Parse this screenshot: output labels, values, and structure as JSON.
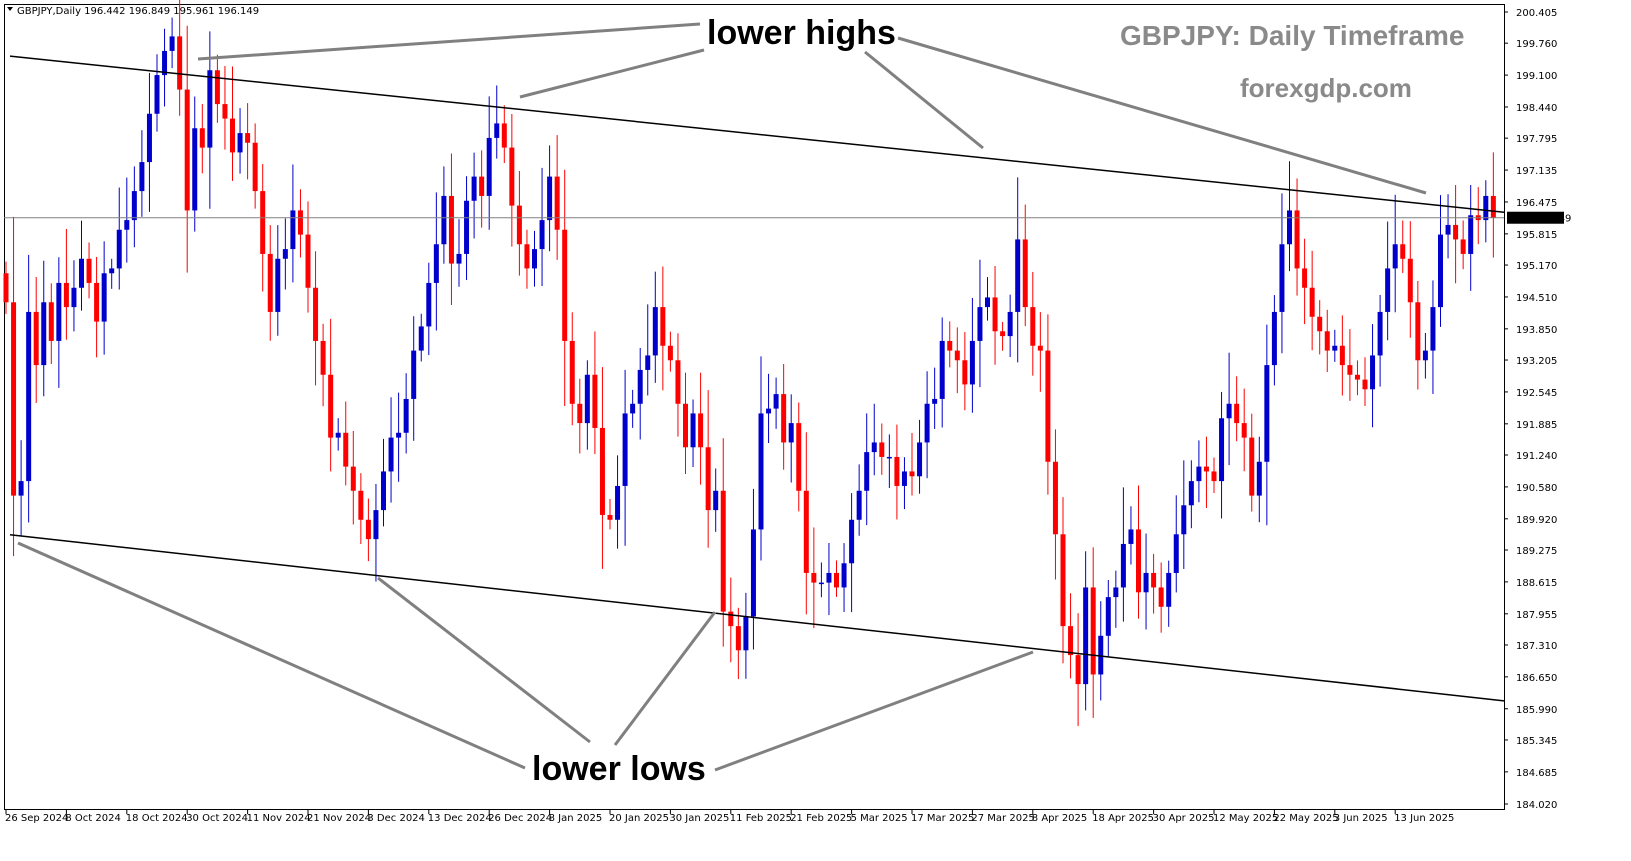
{
  "symbol_info": "GBPJPY,Daily  196.442 196.849 195.961 196.149",
  "watermark": {
    "title": "GBPJPY: Daily Timeframe",
    "site": "forexgdp.com"
  },
  "annotations": {
    "lower_highs": "lower highs",
    "lower_lows": "lower lows"
  },
  "colors": {
    "bull": "#0000cc",
    "bear": "#ff0000",
    "trendline": "#000000",
    "pointer": "#808080",
    "current_line": "#808080",
    "label_bg": "#000000"
  },
  "chart_data": {
    "type": "candlestick",
    "instrument": "GBPJPY",
    "timeframe": "Daily",
    "ylim": [
      184.02,
      200.405
    ],
    "yticks": [
      200.405,
      199.76,
      199.1,
      198.44,
      197.795,
      197.135,
      196.475,
      195.815,
      195.17,
      194.51,
      193.85,
      193.205,
      192.545,
      191.885,
      191.24,
      190.58,
      189.92,
      189.275,
      188.615,
      187.955,
      187.31,
      186.65,
      185.99,
      185.345,
      184.685,
      184.02
    ],
    "ytick_labels": [
      "200.405",
      "199.760",
      "199.100",
      "198.440",
      "197.795",
      "197.135",
      "196.475",
      "195.815",
      "195.170",
      "194.510",
      "193.850",
      "193.205",
      "192.545",
      "191.885",
      "191.240",
      "190.580",
      "189.920",
      "189.275",
      "188.615",
      "187.955",
      "187.310",
      "186.650",
      "185.990",
      "185.345",
      "184.685",
      "184.020"
    ],
    "xticks": [
      {
        "i": 0,
        "label": "26 Sep 2024"
      },
      {
        "i": 8,
        "label": "8 Oct 2024"
      },
      {
        "i": 16,
        "label": "18 Oct 2024"
      },
      {
        "i": 24,
        "label": "30 Oct 2024"
      },
      {
        "i": 32,
        "label": "11 Nov 2024"
      },
      {
        "i": 40,
        "label": "21 Nov 2024"
      },
      {
        "i": 48,
        "label": "3 Dec 2024"
      },
      {
        "i": 56,
        "label": "13 Dec 2024"
      },
      {
        "i": 64,
        "label": "26 Dec 2024"
      },
      {
        "i": 72,
        "label": "8 Jan 2025"
      },
      {
        "i": 80,
        "label": "20 Jan 2025"
      },
      {
        "i": 88,
        "label": "30 Jan 2025"
      },
      {
        "i": 96,
        "label": "11 Feb 2025"
      },
      {
        "i": 104,
        "label": "21 Feb 2025"
      },
      {
        "i": 112,
        "label": "5 Mar 2025"
      },
      {
        "i": 120,
        "label": "17 Mar 2025"
      },
      {
        "i": 128,
        "label": "27 Mar 2025"
      },
      {
        "i": 136,
        "label": "8 Apr 2025"
      },
      {
        "i": 144,
        "label": "18 Apr 2025"
      },
      {
        "i": 152,
        "label": "30 Apr 2025"
      },
      {
        "i": 160,
        "label": "12 May 2025"
      },
      {
        "i": 168,
        "label": "22 May 2025"
      },
      {
        "i": 176,
        "label": "3 Jun 2025"
      },
      {
        "i": 184,
        "label": "13 Jun 2025"
      }
    ],
    "current_price": 196.149,
    "current_price_label": "196.149",
    "channel": {
      "upper": [
        {
          "i": 0,
          "price": 199.5
        },
        {
          "i": 190,
          "price": 196.4
        }
      ],
      "lower": [
        {
          "i": 0,
          "price": 189.6
        },
        {
          "i": 190,
          "price": 186.3
        }
      ]
    },
    "closes": [
      194.4,
      190.4,
      190.7,
      194.2,
      193.1,
      194.4,
      193.6,
      194.8,
      194.3,
      194.7,
      195.3,
      194.8,
      194.0,
      195.0,
      195.1,
      195.9,
      196.1,
      196.7,
      197.3,
      198.3,
      199.1,
      199.6,
      199.9,
      198.8,
      196.3,
      198.0,
      197.6,
      199.2,
      198.5,
      198.2,
      197.5,
      197.9,
      197.7,
      196.7,
      195.4,
      194.2,
      195.3,
      195.5,
      196.3,
      195.8,
      194.7,
      193.6,
      192.9,
      191.6,
      191.7,
      191.0,
      190.5,
      189.9,
      189.5,
      190.1,
      190.9,
      191.6,
      191.7,
      192.4,
      193.4,
      193.9,
      194.8,
      195.6,
      196.6,
      195.2,
      195.4,
      196.5,
      197.0,
      196.6,
      197.8,
      198.1,
      197.6,
      196.4,
      195.6,
      195.1,
      195.5,
      196.1,
      197.0,
      195.9,
      193.6,
      192.3,
      191.9,
      192.9,
      191.8,
      190.0,
      189.9,
      190.6,
      192.1,
      192.3,
      193.0,
      193.3,
      194.3,
      193.5,
      193.2,
      192.3,
      191.4,
      192.1,
      191.4,
      190.1,
      190.5,
      188.0,
      187.7,
      187.2,
      187.9,
      189.7,
      192.1,
      192.2,
      192.5,
      191.5,
      191.9,
      190.5,
      188.8,
      188.6,
      188.6,
      188.8,
      188.5,
      189.0,
      189.9,
      190.5,
      191.3,
      191.5,
      191.2,
      191.2,
      190.6,
      190.9,
      190.8,
      191.5,
      192.3,
      192.4,
      193.6,
      193.4,
      193.2,
      192.7,
      193.6,
      194.3,
      194.5,
      193.8,
      193.7,
      194.2,
      195.7,
      194.3,
      193.5,
      193.4,
      191.1,
      189.6,
      187.7,
      187.1,
      186.5,
      188.5,
      186.7,
      187.5,
      188.3,
      188.5,
      189.4,
      189.7,
      188.4,
      188.8,
      188.5,
      188.1,
      188.8,
      189.6,
      190.2,
      190.7,
      191.0,
      190.9,
      190.7,
      192.0,
      192.3,
      191.9,
      191.6,
      190.4,
      191.1,
      193.1,
      194.2,
      195.6,
      196.3,
      195.1,
      194.7,
      194.1,
      193.8,
      193.4,
      193.5,
      193.1,
      192.9,
      192.8,
      192.6,
      193.3,
      194.2,
      195.1,
      195.6,
      195.3,
      194.4,
      193.2,
      193.4,
      194.3,
      195.8,
      196.0,
      195.7,
      195.4,
      196.2,
      196.1,
      196.6,
      196.15
    ],
    "first_open": 195.0
  }
}
